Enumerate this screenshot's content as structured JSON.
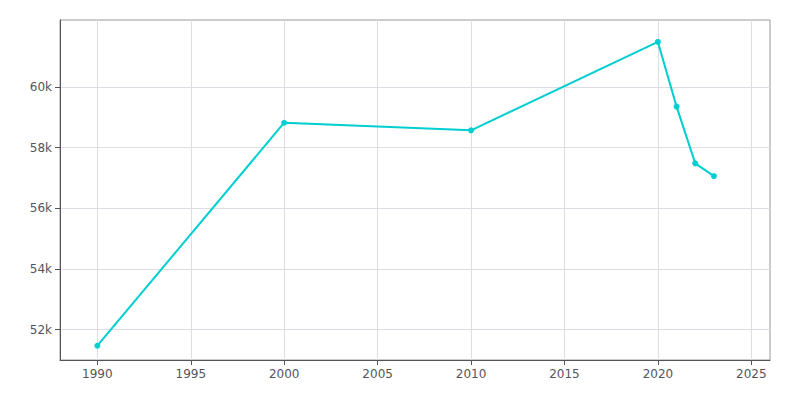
{
  "chart_data": {
    "type": "line",
    "x": [
      1990,
      2000,
      2010,
      2020,
      2021,
      2022,
      2023
    ],
    "values": [
      51470,
      58816,
      58566,
      61478,
      59347,
      57478,
      57059
    ],
    "color": "#00CED1",
    "marker": "circle",
    "xlim": [
      1988,
      2026
    ],
    "xticks": [
      1990,
      1995,
      2000,
      2005,
      2010,
      2015,
      2020,
      2025
    ],
    "ylim": [
      51000,
      62200
    ],
    "yticks": [
      {
        "value": 52000,
        "label": "52k"
      },
      {
        "value": 54000,
        "label": "54k"
      },
      {
        "value": 56000,
        "label": "56k"
      },
      {
        "value": 58000,
        "label": "58k"
      },
      {
        "value": 60000,
        "label": "60k"
      }
    ],
    "grid": true
  }
}
